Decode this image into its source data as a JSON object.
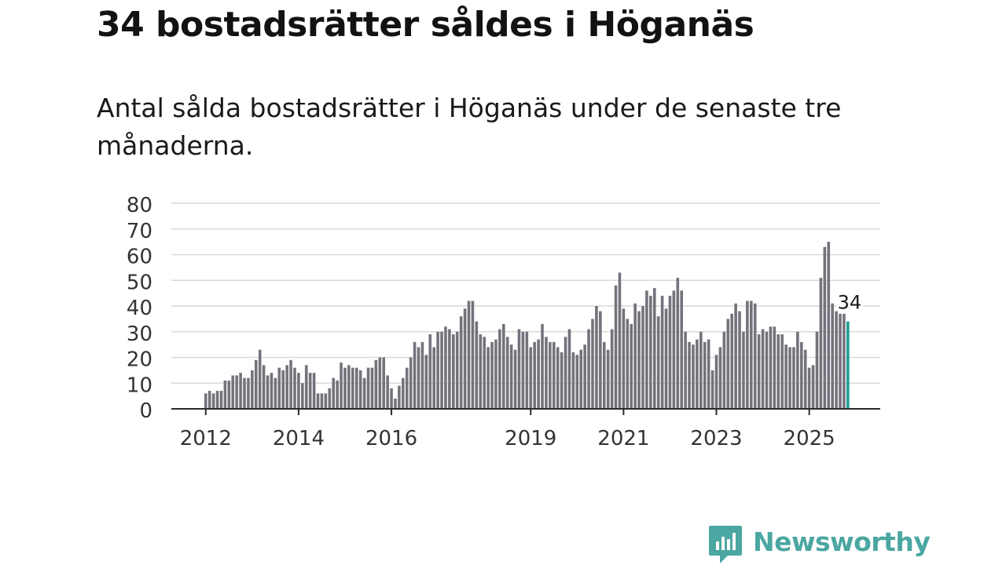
{
  "title": "34 bostadsrätter såldes i Höganäs",
  "subtitle": "Antal sålda bostadsrätter i Höganäs under de senaste tre månaderna.",
  "brand": {
    "name": "Newsworthy",
    "icon": "newsworthy-chart-bubble-icon",
    "color": "#4ba7a1"
  },
  "colors": {
    "bar": "#74737c",
    "highlight": "#1a9e96",
    "grid": "#d9d9d9",
    "axis": "#2b2b2b"
  },
  "chart_data": {
    "type": "bar",
    "title": "34 bostadsrätter såldes i Höganäs",
    "xlabel": "",
    "ylabel": "",
    "ylim": [
      0,
      80
    ],
    "yticks": [
      "0",
      "10",
      "20",
      "30",
      "40",
      "50",
      "60",
      "70",
      "80"
    ],
    "grid": true,
    "start": "2012-01",
    "frequency": "monthly",
    "xticks": [
      {
        "label": "2012",
        "index": 0
      },
      {
        "label": "2014",
        "index": 24
      },
      {
        "label": "2016",
        "index": 48
      },
      {
        "label": "2019",
        "index": 84
      },
      {
        "label": "2021",
        "index": 108
      },
      {
        "label": "2023",
        "index": 132
      },
      {
        "label": "2025",
        "index": 156
      }
    ],
    "highlight_label": "34",
    "series": [
      {
        "name": "Antal sålda bostadsrätter",
        "values": [
          6,
          7,
          6,
          7,
          7,
          11,
          11,
          13,
          13,
          14,
          12,
          12,
          15,
          19,
          23,
          17,
          13,
          14,
          12,
          16,
          15,
          17,
          19,
          16,
          14,
          10,
          17,
          14,
          14,
          6,
          6,
          6,
          8,
          12,
          11,
          18,
          16,
          17,
          16,
          16,
          15,
          12,
          16,
          16,
          19,
          20,
          20,
          13,
          8,
          4,
          9,
          12,
          16,
          20,
          26,
          24,
          26,
          21,
          29,
          24,
          30,
          30,
          32,
          31,
          29,
          30,
          36,
          39,
          42,
          42,
          34,
          29,
          28,
          24,
          26,
          27,
          31,
          33,
          28,
          25,
          23,
          31,
          30,
          30,
          24,
          26,
          27,
          33,
          28,
          26,
          26,
          24,
          22,
          28,
          31,
          22,
          21,
          23,
          25,
          31,
          35,
          40,
          38,
          26,
          23,
          31,
          48,
          53,
          39,
          35,
          33,
          41,
          38,
          40,
          46,
          44,
          47,
          36,
          44,
          39,
          44,
          46,
          51,
          46,
          30,
          26,
          25,
          27,
          30,
          26,
          27,
          15,
          21,
          24,
          30,
          35,
          37,
          41,
          38,
          30,
          42,
          42,
          41,
          29,
          31,
          30,
          32,
          32,
          29,
          29,
          25,
          24,
          24,
          30,
          26,
          23,
          16,
          17,
          30,
          51,
          63,
          65,
          41,
          38,
          37,
          37,
          34
        ]
      }
    ]
  }
}
